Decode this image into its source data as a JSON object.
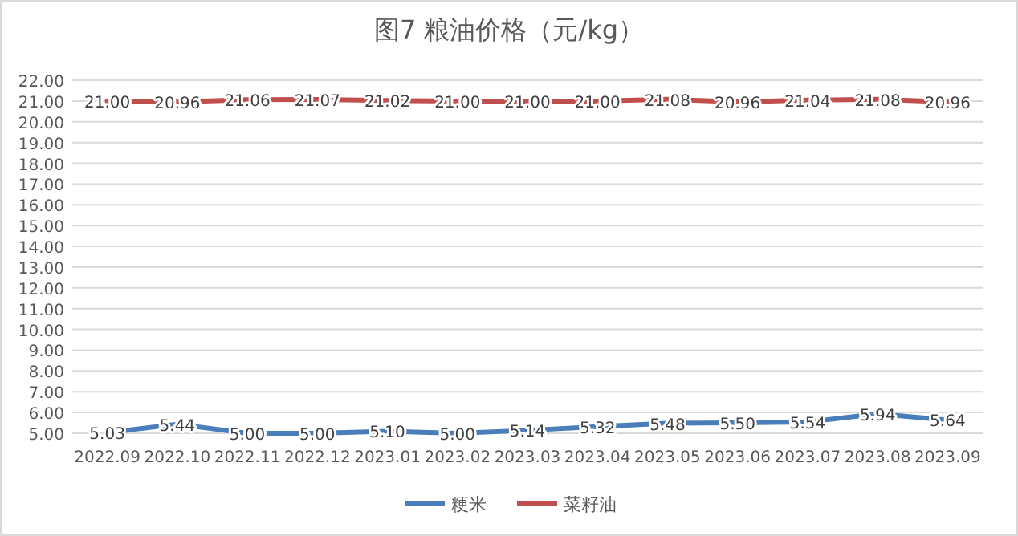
{
  "chart_data": {
    "type": "line",
    "title": "图7  粮油价格（元/kg）",
    "categories": [
      "2022.09",
      "2022.10",
      "2022.11",
      "2022.12",
      "2023.01",
      "2023.02",
      "2023.03",
      "2023.04",
      "2023.05",
      "2023.06",
      "2023.07",
      "2023.08",
      "2023.09"
    ],
    "series": [
      {
        "name": "粳米",
        "color": "#4a7ebb",
        "values": [
          5.03,
          5.44,
          5.0,
          5.0,
          5.1,
          5.0,
          5.14,
          5.32,
          5.48,
          5.5,
          5.54,
          5.94,
          5.64
        ],
        "value_labels": [
          "5.03",
          "5.44",
          "5.00",
          "5.00",
          "5.10",
          "5.00",
          "5.14",
          "5.32",
          "5.48",
          "5.50",
          "5.54",
          "5.94",
          "5.64"
        ]
      },
      {
        "name": "菜籽油",
        "color": "#c0504d",
        "values": [
          21.0,
          20.96,
          21.06,
          21.07,
          21.02,
          21.0,
          21.0,
          21.0,
          21.08,
          20.96,
          21.04,
          21.08,
          20.96
        ],
        "value_labels": [
          "21.00",
          "20.96",
          "21.06",
          "21.07",
          "21.02",
          "21.00",
          "21.00",
          "21.00",
          "21.08",
          "20.96",
          "21.04",
          "21.08",
          "20.96"
        ]
      }
    ],
    "ylim": [
      5,
      22
    ],
    "yticks": [
      {
        "value": 5,
        "label": "5.00"
      },
      {
        "value": 6,
        "label": "6.00"
      },
      {
        "value": 7,
        "label": "7.00"
      },
      {
        "value": 8,
        "label": "8.00"
      },
      {
        "value": 9,
        "label": "9.00"
      },
      {
        "value": 10,
        "label": "10.00"
      },
      {
        "value": 11,
        "label": "11.00"
      },
      {
        "value": 12,
        "label": "12.00"
      },
      {
        "value": 13,
        "label": "13.00"
      },
      {
        "value": 14,
        "label": "14.00"
      },
      {
        "value": 15,
        "label": "15.00"
      },
      {
        "value": 16,
        "label": "16.00"
      },
      {
        "value": 17,
        "label": "17.00"
      },
      {
        "value": 18,
        "label": "18.00"
      },
      {
        "value": 19,
        "label": "19.00"
      },
      {
        "value": 20,
        "label": "20.00"
      },
      {
        "value": 21,
        "label": "21.00"
      },
      {
        "value": 22,
        "label": "22.00"
      }
    ],
    "grid": "y",
    "legend": "bottom",
    "marker": "none",
    "line_style": "solid"
  }
}
